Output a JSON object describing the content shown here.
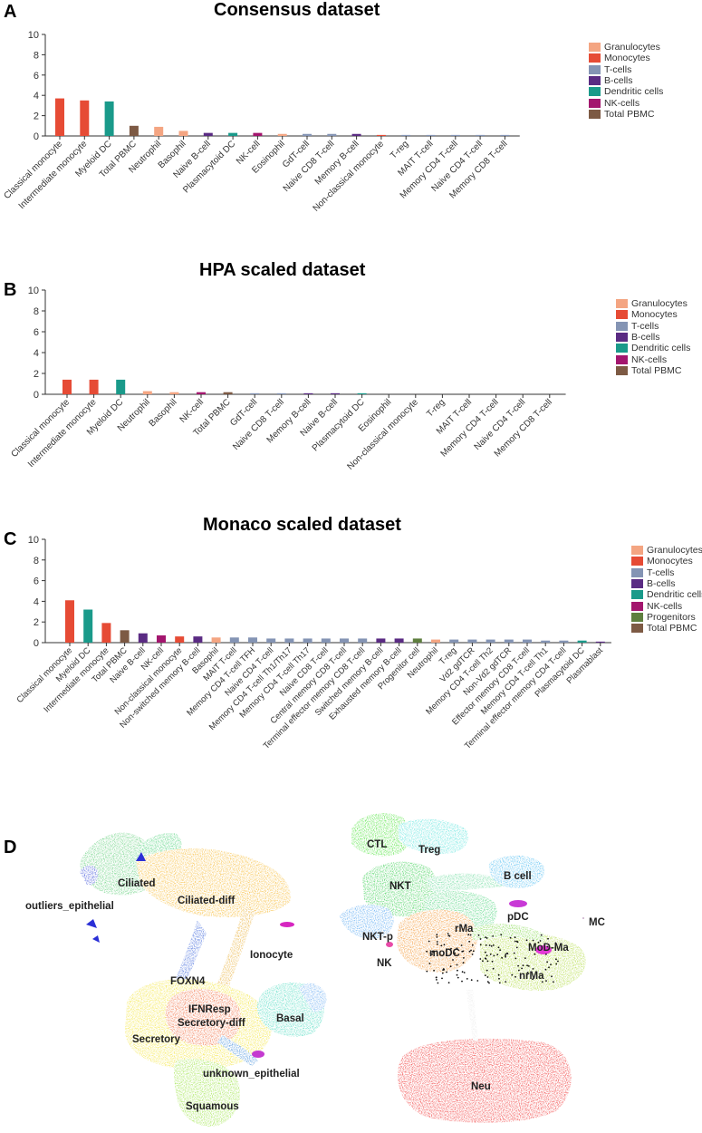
{
  "panels": {
    "a": "A",
    "b": "B",
    "c": "C",
    "d": "D"
  },
  "chart_data": [
    {
      "type": "bar",
      "title": "Consensus dataset",
      "ylim": [
        0,
        10
      ],
      "yticks": [
        0,
        2,
        4,
        6,
        8,
        10
      ],
      "legend": [
        {
          "name": "Granulocytes",
          "color": "#f4a582"
        },
        {
          "name": "Monocytes",
          "color": "#e64b35"
        },
        {
          "name": "T-cells",
          "color": "#8494b4"
        },
        {
          "name": "B-cells",
          "color": "#5a2b83"
        },
        {
          "name": "Dendritic cells",
          "color": "#1a9a8a"
        },
        {
          "name": "NK-cells",
          "color": "#a3166e"
        },
        {
          "name": "Total PBMC",
          "color": "#7d5a44"
        }
      ],
      "bars": [
        {
          "label": "Classical monocyte",
          "value": 3.7,
          "group": "Monocytes"
        },
        {
          "label": "Intermediate monocyte",
          "value": 3.5,
          "group": "Monocytes"
        },
        {
          "label": "Myeloid DC",
          "value": 3.4,
          "group": "Dendritic cells"
        },
        {
          "label": "Total PBMC",
          "value": 1.0,
          "group": "Total PBMC"
        },
        {
          "label": "Neutrophil",
          "value": 0.9,
          "group": "Granulocytes"
        },
        {
          "label": "Basophil",
          "value": 0.5,
          "group": "Granulocytes"
        },
        {
          "label": "Naive B-cell",
          "value": 0.3,
          "group": "B-cells"
        },
        {
          "label": "Plasmacytoid DC",
          "value": 0.3,
          "group": "Dendritic cells"
        },
        {
          "label": "NK-cell",
          "value": 0.3,
          "group": "NK-cells"
        },
        {
          "label": "Eosinophil",
          "value": 0.2,
          "group": "Granulocytes"
        },
        {
          "label": "GdT-cell",
          "value": 0.2,
          "group": "T-cells"
        },
        {
          "label": "Naive CD8 T-cell",
          "value": 0.2,
          "group": "T-cells"
        },
        {
          "label": "Memory B-cell",
          "value": 0.2,
          "group": "B-cells"
        },
        {
          "label": "Non-classical monocyte",
          "value": 0.1,
          "group": "Monocytes"
        },
        {
          "label": "T-reg",
          "value": 0.1,
          "group": "T-cells"
        },
        {
          "label": "MAIT T-cell",
          "value": 0.1,
          "group": "T-cells"
        },
        {
          "label": "Memory CD4 T-cell",
          "value": 0.1,
          "group": "T-cells"
        },
        {
          "label": "Naive CD4 T-cell",
          "value": 0.1,
          "group": "T-cells"
        },
        {
          "label": "Memory CD8 T-cell",
          "value": 0.1,
          "group": "T-cells"
        }
      ]
    },
    {
      "type": "bar",
      "title": "HPA scaled dataset",
      "ylim": [
        0,
        10
      ],
      "yticks": [
        0,
        2,
        4,
        6,
        8,
        10
      ],
      "legend": [
        {
          "name": "Granulocytes",
          "color": "#f4a582"
        },
        {
          "name": "Monocytes",
          "color": "#e64b35"
        },
        {
          "name": "T-cells",
          "color": "#8494b4"
        },
        {
          "name": "B-cells",
          "color": "#5a2b83"
        },
        {
          "name": "Dendritic cells",
          "color": "#1a9a8a"
        },
        {
          "name": "NK-cells",
          "color": "#a3166e"
        },
        {
          "name": "Total PBMC",
          "color": "#7d5a44"
        }
      ],
      "bars": [
        {
          "label": "Classical monocyte",
          "value": 1.4,
          "group": "Monocytes"
        },
        {
          "label": "Intermediate monocyte",
          "value": 1.4,
          "group": "Monocytes"
        },
        {
          "label": "Myeloid DC",
          "value": 1.4,
          "group": "Dendritic cells"
        },
        {
          "label": "Neutrophil",
          "value": 0.3,
          "group": "Granulocytes"
        },
        {
          "label": "Basophil",
          "value": 0.2,
          "group": "Granulocytes"
        },
        {
          "label": "NK-cell",
          "value": 0.2,
          "group": "NK-cells"
        },
        {
          "label": "Total PBMC",
          "value": 0.2,
          "group": "Total PBMC"
        },
        {
          "label": "GdT-cell",
          "value": 0.1,
          "group": "T-cells"
        },
        {
          "label": "Naive CD8 T-cell",
          "value": 0.1,
          "group": "T-cells"
        },
        {
          "label": "Memory B-cell",
          "value": 0.1,
          "group": "B-cells"
        },
        {
          "label": "Naive B-cell",
          "value": 0.1,
          "group": "B-cells"
        },
        {
          "label": "Plasmacytoid DC",
          "value": 0.1,
          "group": "Dendritic cells"
        },
        {
          "label": "Eosinophil",
          "value": 0.0,
          "group": "Granulocytes"
        },
        {
          "label": "Non-classical monocyte",
          "value": 0.0,
          "group": "Monocytes"
        },
        {
          "label": "T-reg",
          "value": 0.0,
          "group": "T-cells"
        },
        {
          "label": "MAIT T-cell",
          "value": 0.0,
          "group": "T-cells"
        },
        {
          "label": "Memory CD4 T-cell",
          "value": 0.0,
          "group": "T-cells"
        },
        {
          "label": "Naive CD4 T-cell",
          "value": 0.0,
          "group": "T-cells"
        },
        {
          "label": "Memory CD8 T-cell",
          "value": 0.0,
          "group": "T-cells"
        }
      ]
    },
    {
      "type": "bar",
      "title": "Monaco scaled dataset",
      "ylim": [
        0,
        10
      ],
      "yticks": [
        0,
        2,
        4,
        6,
        8,
        10
      ],
      "legend": [
        {
          "name": "Granulocytes",
          "color": "#f4a582"
        },
        {
          "name": "Monocytes",
          "color": "#e64b35"
        },
        {
          "name": "T-cells",
          "color": "#8494b4"
        },
        {
          "name": "B-cells",
          "color": "#5a2b83"
        },
        {
          "name": "Dendritic cells",
          "color": "#1a9a8a"
        },
        {
          "name": "NK-cells",
          "color": "#a3166e"
        },
        {
          "name": "Progenitors",
          "color": "#5f7f3f"
        },
        {
          "name": "Total PBMC",
          "color": "#7d5a44"
        }
      ],
      "bars": [
        {
          "label": "Classical monocyte",
          "value": 4.1,
          "group": "Monocytes"
        },
        {
          "label": "Myeloid DC",
          "value": 3.2,
          "group": "Dendritic cells"
        },
        {
          "label": "Intermediate monocyte",
          "value": 1.9,
          "group": "Monocytes"
        },
        {
          "label": "Total PBMC",
          "value": 1.2,
          "group": "Total PBMC"
        },
        {
          "label": "Naive B-cell",
          "value": 0.9,
          "group": "B-cells"
        },
        {
          "label": "NK-cell",
          "value": 0.7,
          "group": "NK-cells"
        },
        {
          "label": "Non-classical monocyte",
          "value": 0.6,
          "group": "Monocytes"
        },
        {
          "label": "Non-switched memory B-cell",
          "value": 0.6,
          "group": "B-cells"
        },
        {
          "label": "Basophil",
          "value": 0.5,
          "group": "Granulocytes"
        },
        {
          "label": "MAIT T-cell",
          "value": 0.5,
          "group": "T-cells"
        },
        {
          "label": "Memory CD4 T-cell TFH",
          "value": 0.5,
          "group": "T-cells"
        },
        {
          "label": "Naive CD4 T-cell",
          "value": 0.4,
          "group": "T-cells"
        },
        {
          "label": "Memory CD4 T-cell Th1/Th17",
          "value": 0.4,
          "group": "T-cells"
        },
        {
          "label": "Memory CD4 T-cell Th17",
          "value": 0.4,
          "group": "T-cells"
        },
        {
          "label": "Naive CD8 T-cell",
          "value": 0.4,
          "group": "T-cells"
        },
        {
          "label": "Central memory CD8 T-cell",
          "value": 0.4,
          "group": "T-cells"
        },
        {
          "label": "Terminal effector memory CD8 T-cell",
          "value": 0.4,
          "group": "T-cells"
        },
        {
          "label": "Switched memory B-cell",
          "value": 0.4,
          "group": "B-cells"
        },
        {
          "label": "Exhausted memory B-cell",
          "value": 0.4,
          "group": "B-cells"
        },
        {
          "label": "Progenitor cell",
          "value": 0.4,
          "group": "Progenitors"
        },
        {
          "label": "Neutrophil",
          "value": 0.3,
          "group": "Granulocytes"
        },
        {
          "label": "T-reg",
          "value": 0.3,
          "group": "T-cells"
        },
        {
          "label": "Vd2 gdTCR",
          "value": 0.3,
          "group": "T-cells"
        },
        {
          "label": "Memory CD4 T-cell Th2",
          "value": 0.3,
          "group": "T-cells"
        },
        {
          "label": "Non-Vd2 gdTCR",
          "value": 0.3,
          "group": "T-cells"
        },
        {
          "label": "Effector memory CD8 T-cell",
          "value": 0.3,
          "group": "T-cells"
        },
        {
          "label": "Memory CD4 T-cell Th1",
          "value": 0.2,
          "group": "T-cells"
        },
        {
          "label": "Terminal effector memory CD4 T-cell",
          "value": 0.2,
          "group": "T-cells"
        },
        {
          "label": "Plasmacytoid DC",
          "value": 0.2,
          "group": "Dendritic cells"
        },
        {
          "label": "Plasmablast",
          "value": 0.1,
          "group": "B-cells"
        }
      ]
    }
  ],
  "umap": {
    "epithelial_labels": [
      "Ciliated",
      "outliers_epithelial",
      "Ciliated-diff",
      "Ionocyte",
      "FOXN4",
      "IFNResp",
      "Secretory-diff",
      "Basal",
      "Secretory",
      "unknown_epithelial",
      "Squamous"
    ],
    "immune_labels": [
      "CTL",
      "Treg",
      "NKT",
      "B cell",
      "pDC",
      "MC",
      "NKT-p",
      "rMa",
      "MoD-Ma",
      "NK",
      "moDC",
      "nrMa",
      "Neu"
    ]
  }
}
